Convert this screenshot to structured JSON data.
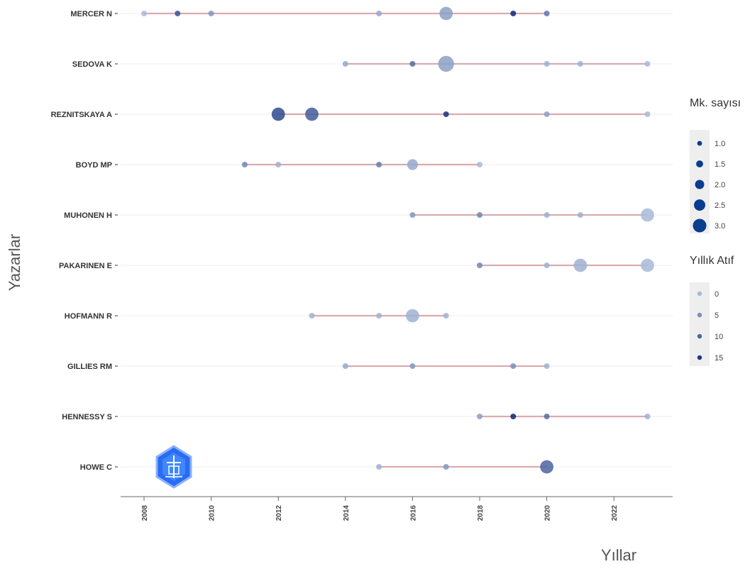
{
  "chart_data": {
    "type": "scatter",
    "title": "",
    "xlabel": "Yıllar",
    "ylabel": "Yazarlar",
    "xlim": [
      2007.3,
      2023.8
    ],
    "x_ticks": [
      2008,
      2010,
      2012,
      2014,
      2016,
      2018,
      2020,
      2022
    ],
    "grid": true,
    "colors": {
      "line": "#d9a3a8",
      "point_dark": "#0a3d8f",
      "point_light": "#9fb3d3"
    },
    "authors": [
      {
        "name": "MERCER N",
        "range": [
          2008,
          2020
        ],
        "points": [
          {
            "x": 2008,
            "articles": 1,
            "citations": 0
          },
          {
            "x": 2009,
            "articles": 1,
            "citations": 12
          },
          {
            "x": 2010,
            "articles": 1,
            "citations": 4
          },
          {
            "x": 2015,
            "articles": 1,
            "citations": 2
          },
          {
            "x": 2017,
            "articles": 2.5,
            "citations": 3
          },
          {
            "x": 2019,
            "articles": 1,
            "citations": 17
          },
          {
            "x": 2020,
            "articles": 1,
            "citations": 8
          }
        ]
      },
      {
        "name": "SEDOVA K",
        "range": [
          2014,
          2023
        ],
        "points": [
          {
            "x": 2014,
            "articles": 1,
            "citations": 2
          },
          {
            "x": 2016,
            "articles": 1,
            "citations": 9
          },
          {
            "x": 2017,
            "articles": 3,
            "citations": 3
          },
          {
            "x": 2020,
            "articles": 1,
            "citations": 1
          },
          {
            "x": 2021,
            "articles": 1,
            "citations": 1
          },
          {
            "x": 2023,
            "articles": 1,
            "citations": 0
          }
        ]
      },
      {
        "name": "REZNITSKAYA A",
        "range": [
          2012,
          2023
        ],
        "points": [
          {
            "x": 2012,
            "articles": 2.5,
            "citations": 13
          },
          {
            "x": 2013,
            "articles": 2.5,
            "citations": 11
          },
          {
            "x": 2017,
            "articles": 1,
            "citations": 16
          },
          {
            "x": 2020,
            "articles": 1,
            "citations": 3
          },
          {
            "x": 2023,
            "articles": 1,
            "citations": 0
          }
        ]
      },
      {
        "name": "BOYD MP",
        "range": [
          2011,
          2018
        ],
        "points": [
          {
            "x": 2011,
            "articles": 1,
            "citations": 6
          },
          {
            "x": 2012,
            "articles": 1,
            "citations": 1
          },
          {
            "x": 2015,
            "articles": 1,
            "citations": 7
          },
          {
            "x": 2016,
            "articles": 2,
            "citations": 2
          },
          {
            "x": 2018,
            "articles": 1,
            "citations": 0
          }
        ]
      },
      {
        "name": "MUHONEN H",
        "range": [
          2016,
          2023
        ],
        "points": [
          {
            "x": 2016,
            "articles": 1,
            "citations": 4
          },
          {
            "x": 2018,
            "articles": 1,
            "citations": 6
          },
          {
            "x": 2020,
            "articles": 1,
            "citations": 1
          },
          {
            "x": 2021,
            "articles": 1,
            "citations": 1
          },
          {
            "x": 2023,
            "articles": 2.5,
            "citations": 0
          }
        ]
      },
      {
        "name": "PAKARINEN E",
        "range": [
          2018,
          2023
        ],
        "points": [
          {
            "x": 2018,
            "articles": 1,
            "citations": 6
          },
          {
            "x": 2020,
            "articles": 1,
            "citations": 1
          },
          {
            "x": 2021,
            "articles": 2.5,
            "citations": 1
          },
          {
            "x": 2023,
            "articles": 2.5,
            "citations": 0
          }
        ]
      },
      {
        "name": "HOFMANN R",
        "range": [
          2013,
          2017
        ],
        "points": [
          {
            "x": 2013,
            "articles": 1,
            "citations": 1
          },
          {
            "x": 2015,
            "articles": 1,
            "citations": 1
          },
          {
            "x": 2016,
            "articles": 2.5,
            "citations": 1
          },
          {
            "x": 2017,
            "articles": 1,
            "citations": 1
          }
        ]
      },
      {
        "name": "GILLIES RM",
        "range": [
          2014,
          2020
        ],
        "points": [
          {
            "x": 2014,
            "articles": 1,
            "citations": 2
          },
          {
            "x": 2016,
            "articles": 1,
            "citations": 4
          },
          {
            "x": 2019,
            "articles": 1,
            "citations": 5
          },
          {
            "x": 2020,
            "articles": 1,
            "citations": 1
          }
        ]
      },
      {
        "name": "HENNESSY S",
        "range": [
          2018,
          2023
        ],
        "points": [
          {
            "x": 2018,
            "articles": 1,
            "citations": 3
          },
          {
            "x": 2019,
            "articles": 1,
            "citations": 17
          },
          {
            "x": 2020,
            "articles": 1,
            "citations": 9
          },
          {
            "x": 2023,
            "articles": 1,
            "citations": 1
          }
        ]
      },
      {
        "name": "HOWE C",
        "range": [
          2015,
          2020
        ],
        "points": [
          {
            "x": 2015,
            "articles": 1,
            "citations": 1
          },
          {
            "x": 2017,
            "articles": 1,
            "citations": 4
          },
          {
            "x": 2020,
            "articles": 2.5,
            "citations": 10
          }
        ]
      }
    ],
    "legend": {
      "placement": "right",
      "size": {
        "title": "Mk. sayısı",
        "values": [
          1.0,
          1.5,
          2.0,
          2.5,
          3.0
        ],
        "labels": [
          "1.0",
          "1.5",
          "2.0",
          "2.5",
          "3.0"
        ]
      },
      "color": {
        "title": "Yıllık Atıf",
        "values": [
          0,
          5,
          10,
          15
        ],
        "labels": [
          "0",
          "5",
          "10",
          "15"
        ]
      }
    }
  },
  "logo": {
    "name": "logo-icon"
  }
}
